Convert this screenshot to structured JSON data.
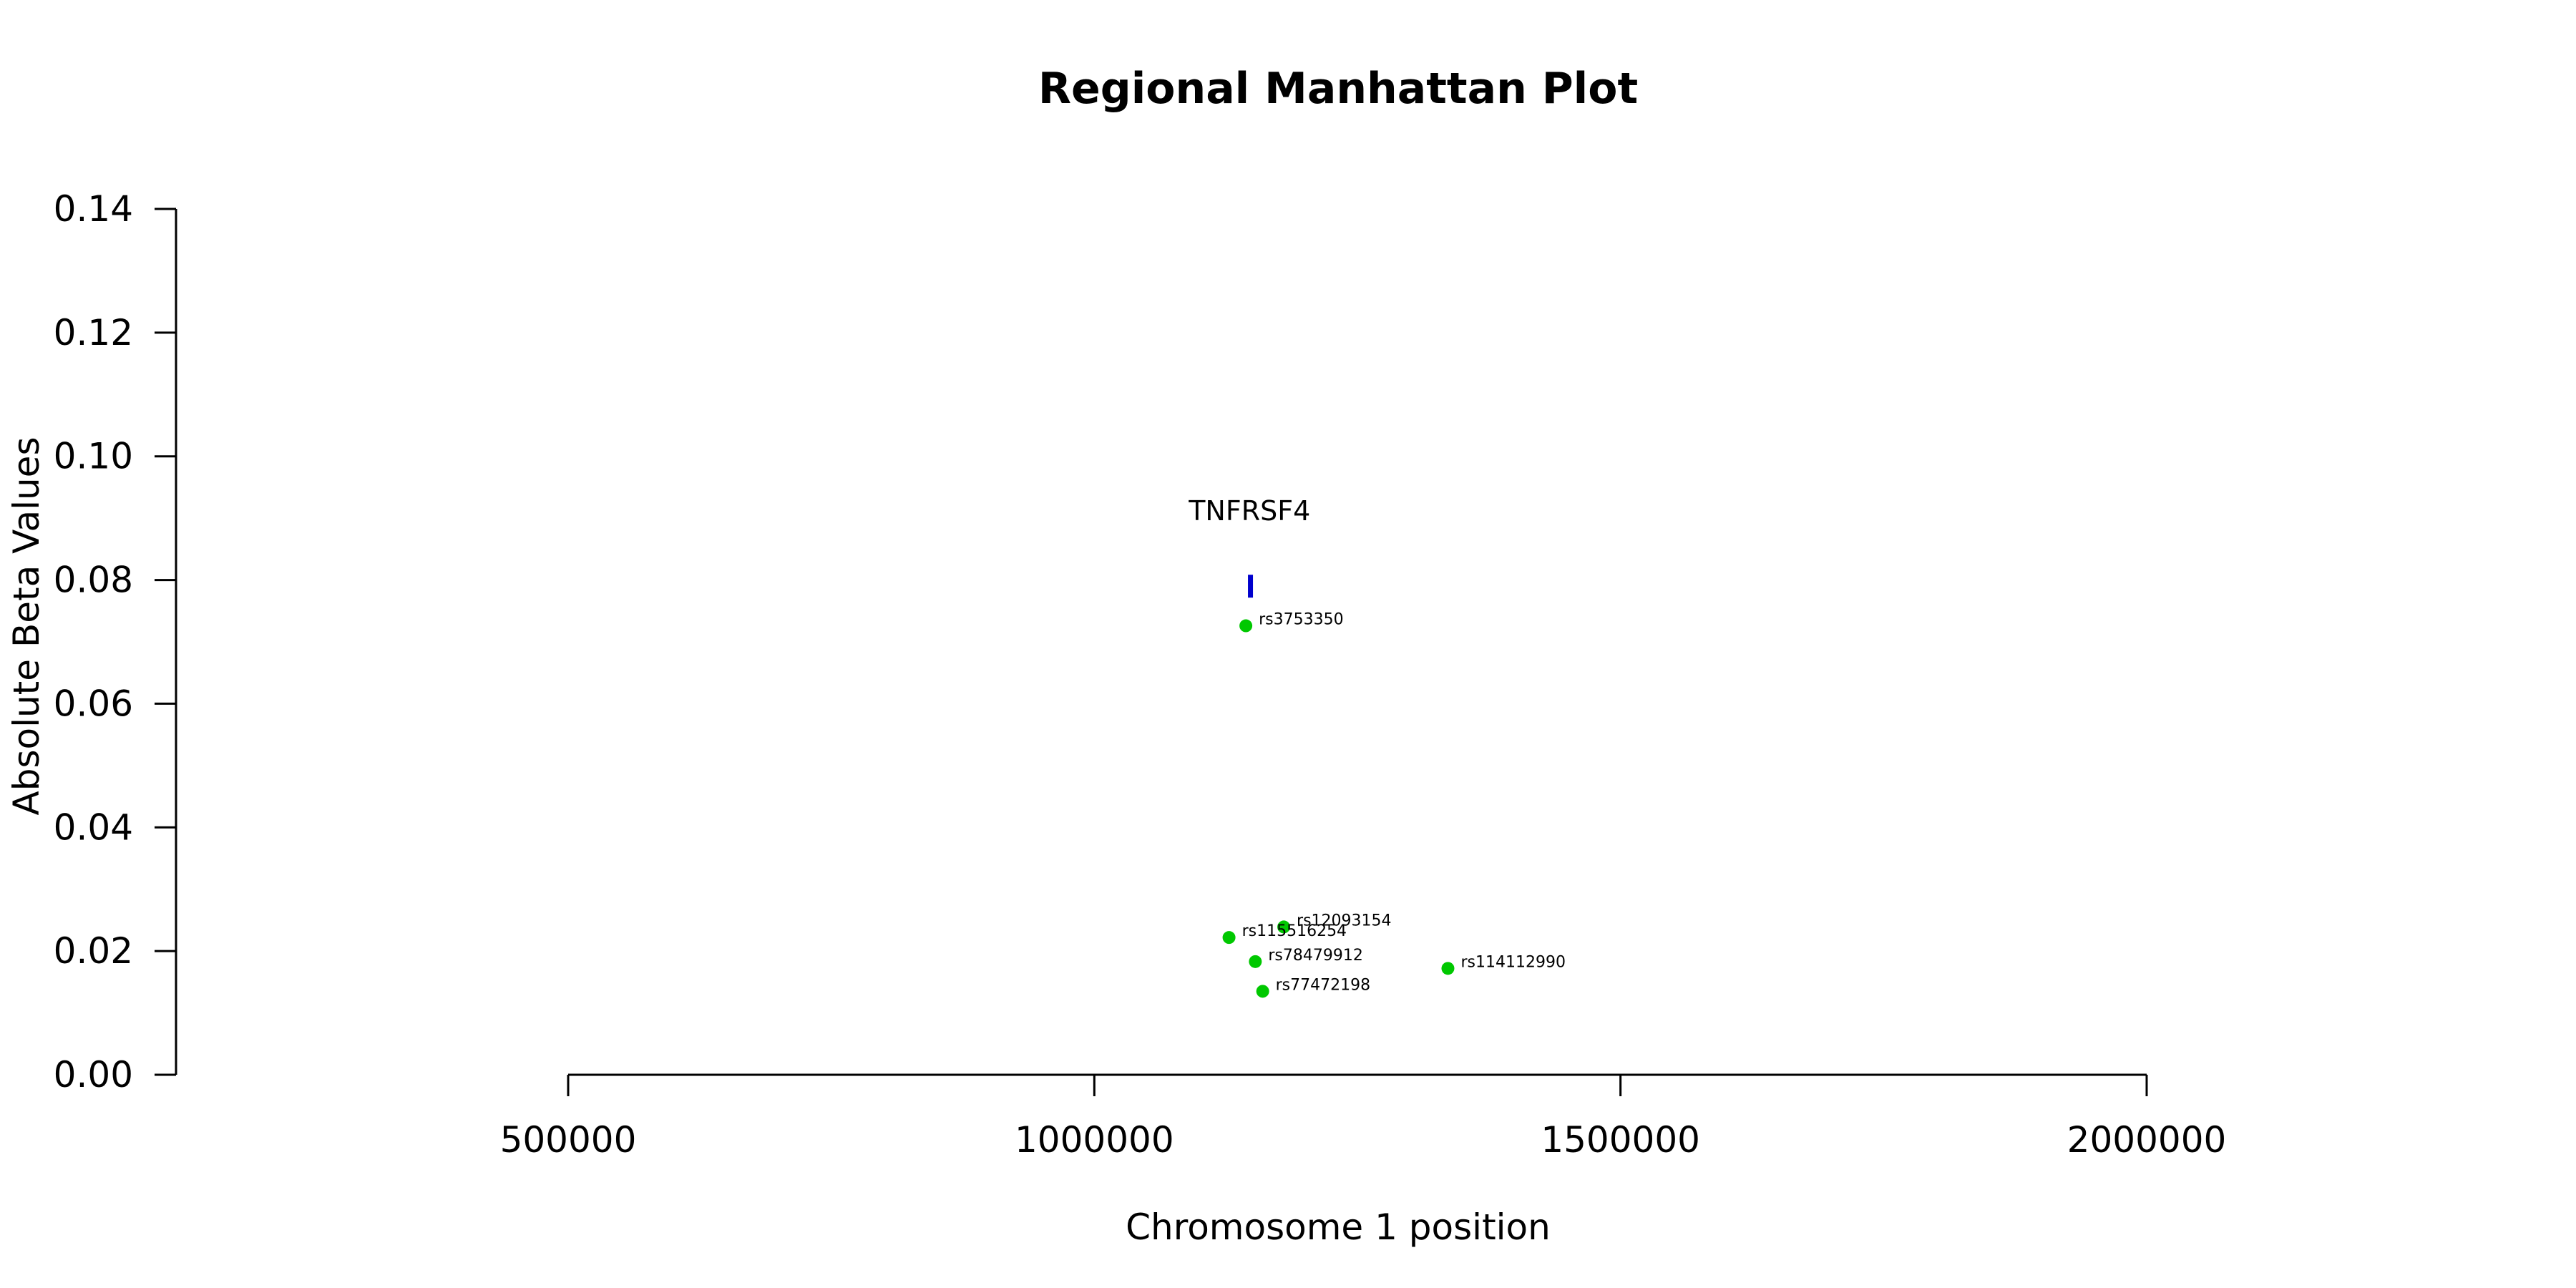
{
  "chart_data": {
    "type": "scatter",
    "title": "Regional Manhattan Plot",
    "xlabel": "Chromosome 1 position",
    "ylabel": "Absolute Beta Values",
    "xlim": [
      500000,
      2000000
    ],
    "ylim": [
      0,
      0.14
    ],
    "x_ticks": [
      "500000",
      "1000000",
      "1500000",
      "2000000"
    ],
    "x_tick_values": [
      500000,
      1000000,
      1500000,
      2000000
    ],
    "y_ticks": [
      "0.00",
      "0.02",
      "0.04",
      "0.06",
      "0.08",
      "0.10",
      "0.12",
      "0.14"
    ],
    "y_tick_values": [
      0,
      0.02,
      0.04,
      0.06,
      0.08,
      0.1,
      0.12,
      0.14
    ],
    "point_color": "#00c800",
    "gene_color": "#0000cd",
    "points": [
      {
        "label": "rs3753350",
        "x": 1144000,
        "y": 0.0726
      },
      {
        "label": "rs12093154",
        "x": 1180000,
        "y": 0.0239
      },
      {
        "label": "rs115516254",
        "x": 1128000,
        "y": 0.0222
      },
      {
        "label": "rs78479912",
        "x": 1153000,
        "y": 0.0183
      },
      {
        "label": "rs114112990",
        "x": 1336000,
        "y": 0.0172
      },
      {
        "label": "rs77472198",
        "x": 1160000,
        "y": 0.0135
      }
    ],
    "genes": [
      {
        "name": "TNFRSF4",
        "x_start": 1146000,
        "x_end": 1149000,
        "y": 0.079
      }
    ],
    "grid": false,
    "legend": false
  }
}
